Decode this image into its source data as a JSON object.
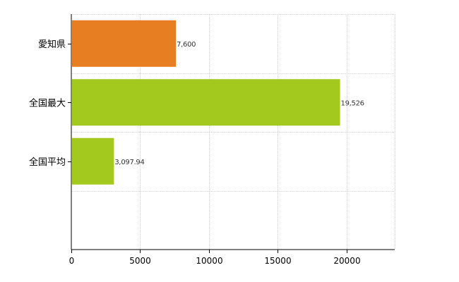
{
  "chart_data": {
    "type": "bar",
    "orientation": "horizontal",
    "categories": [
      "愛知県",
      "全国最大",
      "全国平均"
    ],
    "values": [
      7600,
      19526,
      3097.94
    ],
    "value_labels": [
      "7,600",
      "19,526",
      "3,097.94"
    ],
    "bar_colors": [
      "#e87e22",
      "#a4c91e",
      "#a4c91e"
    ],
    "xlim": [
      0,
      23500
    ],
    "x_ticks": [
      0,
      5000,
      10000,
      15000,
      20000
    ],
    "x_tick_labels": [
      "0",
      "5000",
      "10000",
      "15000",
      "20000"
    ],
    "grid": true,
    "legend": "none"
  }
}
